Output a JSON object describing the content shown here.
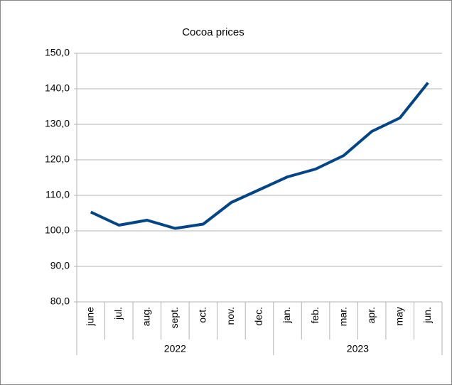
{
  "chart_data": {
    "type": "line",
    "title": "Cocoa prices",
    "groups": [
      {
        "label": "2022",
        "categories": [
          "june",
          "jul.",
          "aug.",
          "sept.",
          "oct.",
          "nov.",
          "dec."
        ]
      },
      {
        "label": "2023",
        "categories": [
          "jan.",
          "feb.",
          "mar.",
          "apr.",
          "may",
          "jun."
        ]
      }
    ],
    "series": [
      {
        "name": "Cocoa prices",
        "color": "#004586",
        "values": [
          105.3,
          101.6,
          103.0,
          100.7,
          101.9,
          108.0,
          111.6,
          115.2,
          117.4,
          121.2,
          128.0,
          131.8,
          141.7
        ]
      }
    ],
    "ylim": [
      80,
      150
    ],
    "yticks": [
      {
        "value": 80,
        "label": "80,0"
      },
      {
        "value": 90,
        "label": "90,0"
      },
      {
        "value": 100,
        "label": "100,0"
      },
      {
        "value": 110,
        "label": "110,0"
      },
      {
        "value": 120,
        "label": "120,0"
      },
      {
        "value": 130,
        "label": "130,0"
      },
      {
        "value": 140,
        "label": "140,0"
      },
      {
        "value": 150,
        "label": "150,0"
      }
    ],
    "grid": true
  }
}
